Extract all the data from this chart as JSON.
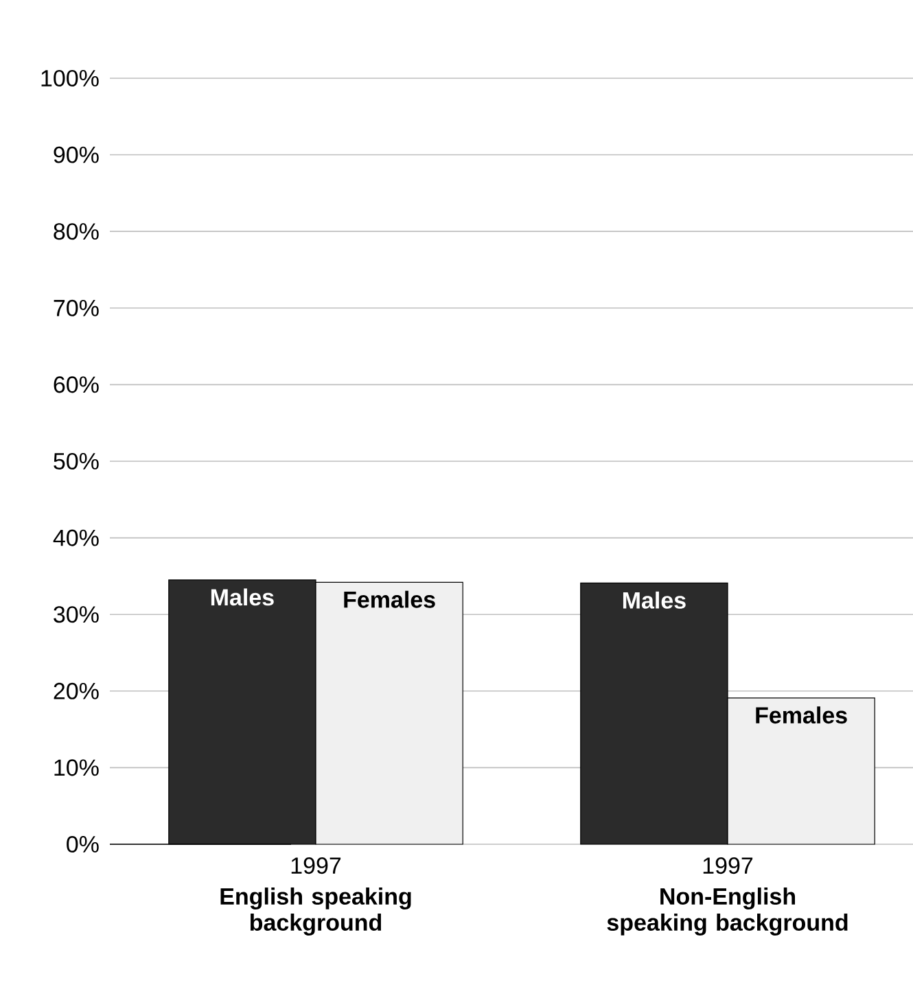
{
  "chart_data": {
    "type": "bar",
    "categories": [
      "**English speaking background**",
      "**Non-English speaking background**"
    ],
    "series": [
      {
        "name": "Males",
        "color": "#2b2b2b",
        "values": [
          34.5,
          34.1
        ]
      },
      {
        "name": "Females",
        "color": "#f0f0f0",
        "values": [
          34.2,
          19.1
        ]
      }
    ],
    "ylim": [
      0,
      100
    ],
    "yticks": [
      {
        "value": 0,
        "label": "0%"
      },
      {
        "value": 10,
        "label": "10%"
      },
      {
        "value": 20,
        "label": "20%"
      },
      {
        "value": 30,
        "label": "30%"
      },
      {
        "value": 40,
        "label": "40%"
      },
      {
        "value": 50,
        "label": "50%"
      },
      {
        "value": 60,
        "label": "60%"
      },
      {
        "value": 70,
        "label": "70%"
      },
      {
        "value": 80,
        "label": "80%"
      },
      {
        "value": 90,
        "label": "90%"
      },
      {
        "value": 100,
        "label": "100%"
      }
    ],
    "grid": "y",
    "annotations": [
      "1997",
      "1997"
    ]
  }
}
